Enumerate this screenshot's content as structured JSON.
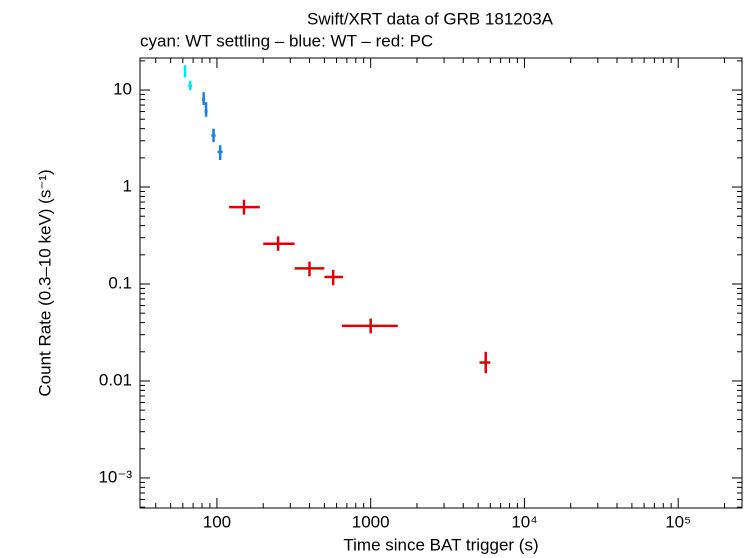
{
  "chart_data": {
    "type": "scatter",
    "title": "Swift/XRT data of GRB 181203A",
    "subtitle": "cyan: WT settling – blue: WT – red: PC",
    "x_label": "Time since BAT trigger (s)",
    "y_label": "Count Rate (0.3–10 keV) (s⁻¹)",
    "x_scale": "log",
    "y_scale": "log",
    "xlim": [
      31.6,
      260000
    ],
    "ylim": [
      0.00049,
      21.4
    ],
    "xticks": [
      100,
      1000,
      {
        "value": 10000,
        "label": "10⁴"
      },
      {
        "value": 100000,
        "label": "10⁵"
      }
    ],
    "yticks": [
      10,
      1,
      0.1,
      0.01,
      {
        "value": 0.001,
        "label": "10⁻³"
      }
    ],
    "series": [
      {
        "color": "#00e5ee",
        "x": [
          62,
          67
        ],
        "x_low": [
          61,
          65
        ],
        "x_high": [
          63,
          69
        ],
        "values": [
          15.5,
          11
        ],
        "y_low": [
          13.5,
          10
        ],
        "y_high": [
          18,
          12.5
        ]
      },
      {
        "color": "#1f7fe0",
        "x": [
          82,
          85,
          95,
          105
        ],
        "x_low": [
          80,
          83,
          92,
          101
        ],
        "x_high": [
          84,
          87,
          98,
          109
        ],
        "values": [
          8,
          6,
          3.4,
          2.3
        ],
        "y_low": [
          7,
          5.3,
          2.9,
          1.9
        ],
        "y_high": [
          9.5,
          7.5,
          4,
          2.7
        ]
      },
      {
        "color": "#e00000",
        "x": [
          150,
          250,
          400,
          570,
          1000,
          5600
        ],
        "x_low": [
          120,
          200,
          320,
          500,
          650,
          5100
        ],
        "x_high": [
          190,
          320,
          500,
          660,
          1500,
          6000
        ],
        "values": [
          0.62,
          0.26,
          0.145,
          0.118,
          0.037,
          0.0155
        ],
        "y_low": [
          0.52,
          0.22,
          0.12,
          0.097,
          0.031,
          0.012
        ],
        "y_high": [
          0.74,
          0.31,
          0.17,
          0.14,
          0.044,
          0.02
        ]
      }
    ]
  }
}
